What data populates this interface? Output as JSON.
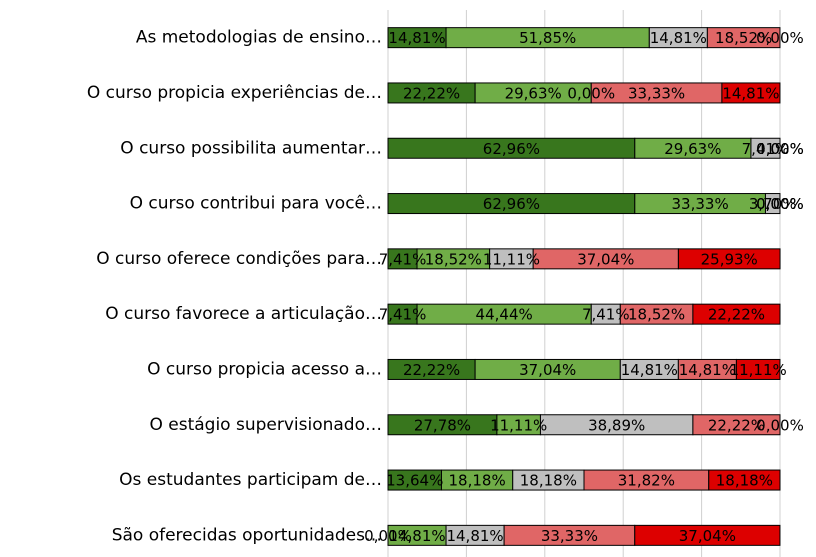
{
  "chart_data": {
    "type": "stacked-bar-horizontal",
    "categories": [
      "As metodologias de ensino…",
      "O curso propicia experiências de…",
      "O curso possibilita aumentar…",
      "O curso contribui para você…",
      "O curso oferece condições para…",
      "O curso favorece a articulação…",
      "O curso propicia acesso a…",
      "O estágio supervisionado…",
      "Os estudantes participam de…",
      "São oferecidas oportunidades…"
    ],
    "series": [
      {
        "color": "#38761d",
        "values": [
          14.81,
          22.22,
          62.96,
          62.96,
          7.41,
          7.41,
          22.22,
          27.78,
          13.64,
          0.0
        ],
        "value_labels": [
          "14,81%",
          "22,22%",
          "62,96%",
          "62,96%",
          "7,41%",
          "7,41%",
          "22,22%",
          "27,78%",
          "13,64%",
          "0,00%"
        ]
      },
      {
        "color": "#70ad47",
        "values": [
          51.85,
          29.63,
          29.63,
          33.33,
          18.52,
          44.44,
          37.04,
          11.11,
          18.18,
          14.81
        ],
        "value_labels": [
          "51,85%",
          "29,63%",
          "29,63%",
          "33,33%",
          "18,52%",
          "44,44%",
          "37,04%",
          "11,11%",
          "18,18%",
          "14,81%"
        ]
      },
      {
        "color": "#bfbfbf",
        "values": [
          14.81,
          0.0,
          7.41,
          3.7,
          11.11,
          7.41,
          14.81,
          38.89,
          18.18,
          14.81
        ],
        "value_labels": [
          "14,81%",
          "0,00%",
          "7,41%",
          "3,70%",
          "11,11%",
          "7,41%",
          "14,81%",
          "38,89%",
          "18,18%",
          "14,81%"
        ]
      },
      {
        "color": "#e06666",
        "values": [
          18.52,
          33.33,
          0.0,
          0.0,
          37.04,
          18.52,
          14.81,
          22.22,
          31.82,
          33.33
        ],
        "value_labels": [
          "18,52%",
          "33,33%",
          "0,00%",
          "0,00%",
          "37,04%",
          "18,52%",
          "14,81%",
          "22,22%",
          "31,82%",
          "33,33%"
        ]
      },
      {
        "color": "#dd0000",
        "values": [
          0.0,
          14.81,
          0.0,
          0.0,
          25.93,
          22.22,
          11.11,
          0.0,
          18.18,
          37.04
        ],
        "value_labels": [
          "0,00%",
          "14,81%",
          "0,00%",
          "0,00%",
          "25,93%",
          "22,22%",
          "11,11%",
          "0,00%",
          "18,18%",
          "37,04%"
        ]
      }
    ],
    "xlim": [
      0,
      100
    ],
    "xticks": [
      0,
      20,
      40,
      60,
      80,
      100
    ],
    "grid": true
  }
}
